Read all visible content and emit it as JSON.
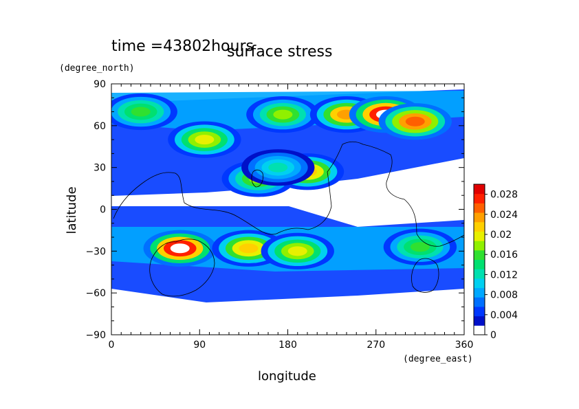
{
  "chart_data": {
    "type": "heatmap",
    "time_label": "time =43802hours",
    "title": "surface stress",
    "xlabel": "longitude",
    "ylabel": "latitude",
    "xunit": "(degree_east)",
    "yunit": "(degree_north)",
    "xlim": [
      0,
      360
    ],
    "ylim": [
      -90,
      90
    ],
    "xticks": [
      "0",
      "90",
      "180",
      "270",
      "360"
    ],
    "yticks": [
      "90",
      "60",
      "30",
      "0",
      "−30",
      "−60",
      "−90"
    ],
    "colorbar": {
      "labels": [
        "0.028",
        "0.024",
        "0.02",
        "0.016",
        "0.012",
        "0.008",
        "0.004",
        "0"
      ],
      "range": [
        0,
        0.03
      ],
      "colors": [
        "#ffffff",
        "#0010c8",
        "#0038ff",
        "#0070ff",
        "#00a8ff",
        "#00d0f0",
        "#00e0b0",
        "#00e070",
        "#30e030",
        "#90f000",
        "#e8f000",
        "#ffd000",
        "#ffa000",
        "#ff6000",
        "#ff2000",
        "#e00000"
      ]
    },
    "features": [
      {
        "lon": 30,
        "lat": 70,
        "value": 0.016
      },
      {
        "lon": 95,
        "lat": 50,
        "value": 0.02
      },
      {
        "lon": 175,
        "lat": 68,
        "value": 0.018
      },
      {
        "lon": 240,
        "lat": 68,
        "value": 0.024
      },
      {
        "lon": 280,
        "lat": 68,
        "value": 0.03
      },
      {
        "lon": 310,
        "lat": 63,
        "value": 0.026
      },
      {
        "lon": 150,
        "lat": 22,
        "value": 0.018
      },
      {
        "lon": 200,
        "lat": 27,
        "value": 0.022
      },
      {
        "lon": 170,
        "lat": 30,
        "value": 0.012
      },
      {
        "lon": 70,
        "lat": -28,
        "value": 0.03
      },
      {
        "lon": 140,
        "lat": -28,
        "value": 0.022
      },
      {
        "lon": 190,
        "lat": -30,
        "value": 0.02
      },
      {
        "lon": 315,
        "lat": -27,
        "value": 0.016
      }
    ]
  }
}
